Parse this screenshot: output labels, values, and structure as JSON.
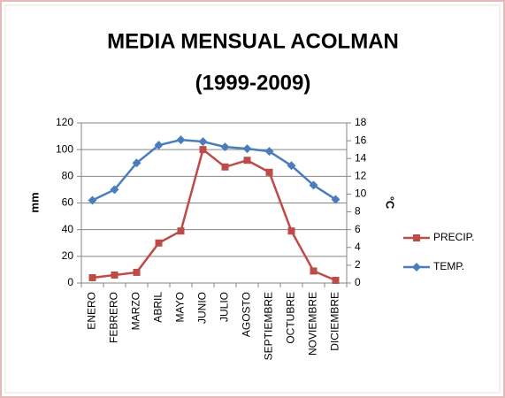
{
  "chart_data": {
    "type": "line",
    "title": [
      "MEDIA MENSUAL ACOLMAN",
      "(1999-2009)"
    ],
    "ylabel": "mm",
    "y2label": "°C",
    "categories": [
      "ENERO",
      "FEBRERO",
      "MARZO",
      "ABRIL",
      "MAYO",
      "JUNIO",
      "JULIO",
      "AGOSTO",
      "SEPTIEMBRE",
      "OCTUBRE",
      "NOVIEMBRE",
      "DICIEMBRE"
    ],
    "series": [
      {
        "name": "PRECIP.",
        "color": "#be4b48",
        "marker": "square",
        "values": [
          4,
          6,
          8,
          30,
          39,
          100,
          87,
          92,
          83,
          39,
          9,
          2
        ]
      },
      {
        "name": "TEMP.",
        "color": "#4a7ebb",
        "marker": "diamond",
        "axis": "y2",
        "values": [
          9.3,
          10.5,
          13.5,
          15.5,
          16.1,
          15.9,
          15.3,
          15.1,
          14.8,
          13.2,
          11,
          9.4
        ]
      }
    ],
    "ylim": [
      0,
      120
    ],
    "yticks": [
      0,
      20,
      40,
      60,
      80,
      100,
      120
    ],
    "y2lim": [
      0,
      18
    ],
    "y2ticks": [
      0,
      2,
      4,
      6,
      8,
      10,
      12,
      14,
      16,
      18
    ],
    "grid": true,
    "legend": "right"
  }
}
